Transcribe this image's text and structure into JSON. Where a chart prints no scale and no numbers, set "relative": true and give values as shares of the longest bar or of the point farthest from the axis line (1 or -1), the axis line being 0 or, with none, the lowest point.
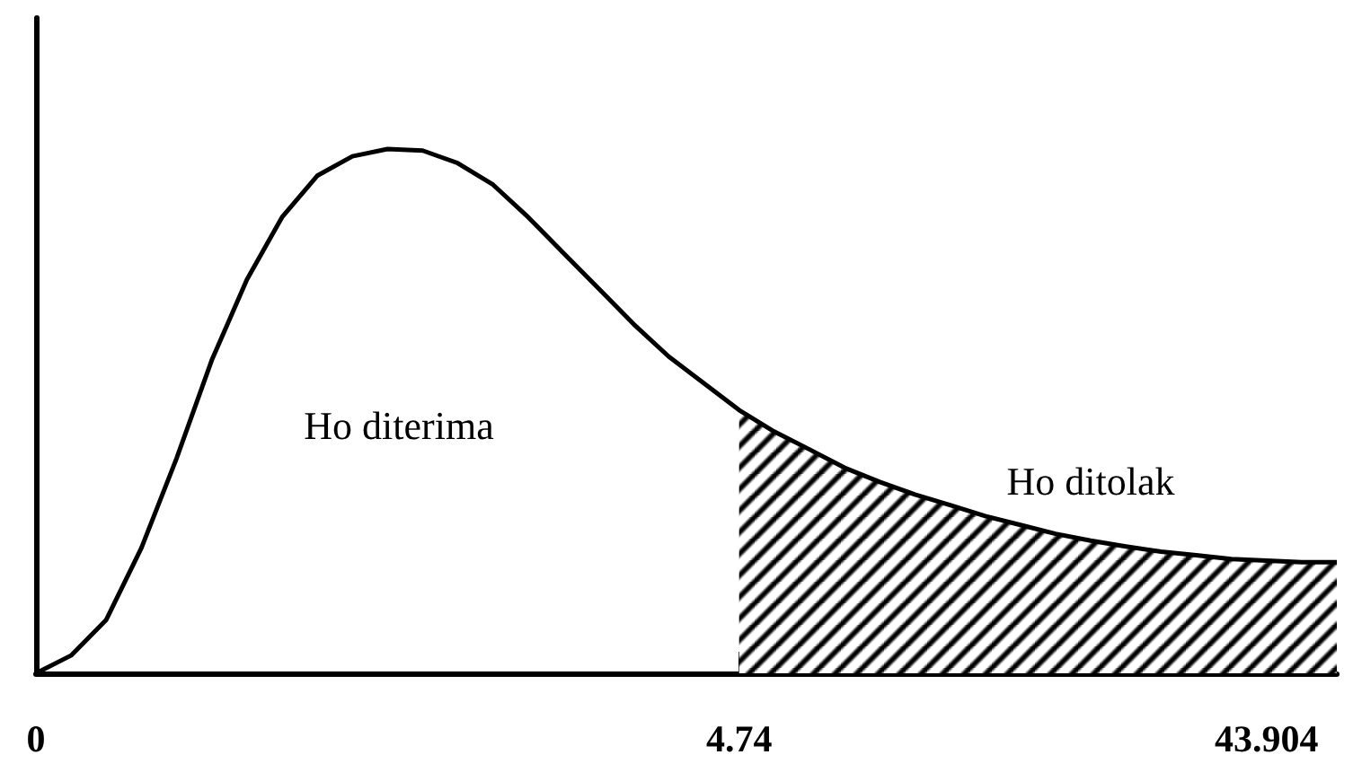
{
  "chart_data": {
    "type": "line",
    "relative": true,
    "marker": "none",
    "categories": [
      "0",
      null,
      null,
      null,
      null,
      null,
      null,
      null,
      null,
      null,
      null,
      null,
      null,
      null,
      null,
      null,
      null,
      null,
      null,
      null,
      "4.74",
      null,
      null,
      null,
      null,
      null,
      null,
      null,
      null,
      null,
      null,
      null,
      null,
      null,
      null,
      "43.904",
      null,
      null
    ],
    "series": [
      {
        "color": "#000000",
        "values": [
          0,
          0.034,
          0.102,
          0.239,
          0.41,
          0.597,
          0.751,
          0.87,
          0.949,
          0.986,
          1,
          0.997,
          0.973,
          0.932,
          0.87,
          0.802,
          0.734,
          0.666,
          0.604,
          0.553,
          0.502,
          0.461,
          0.427,
          0.392,
          0.365,
          0.341,
          0.321,
          0.3,
          0.283,
          0.266,
          0.253,
          0.242,
          0.232,
          0.225,
          0.218,
          0.215,
          0.212,
          0.212
        ]
      },
      {
        "type": "area",
        "color": "#000000",
        "values": [
          null,
          null,
          null,
          null,
          null,
          null,
          null,
          null,
          null,
          null,
          null,
          null,
          null,
          null,
          null,
          null,
          null,
          null,
          null,
          null,
          0.502,
          0.461,
          0.427,
          0.392,
          0.365,
          0.341,
          0.321,
          0.3,
          0.283,
          0.266,
          0.253,
          0.242,
          0.232,
          0.225,
          0.218,
          0.215,
          0.212,
          0.212
        ]
      }
    ],
    "annotations": [
      "Ho diterima",
      "Ho ditolak"
    ]
  }
}
